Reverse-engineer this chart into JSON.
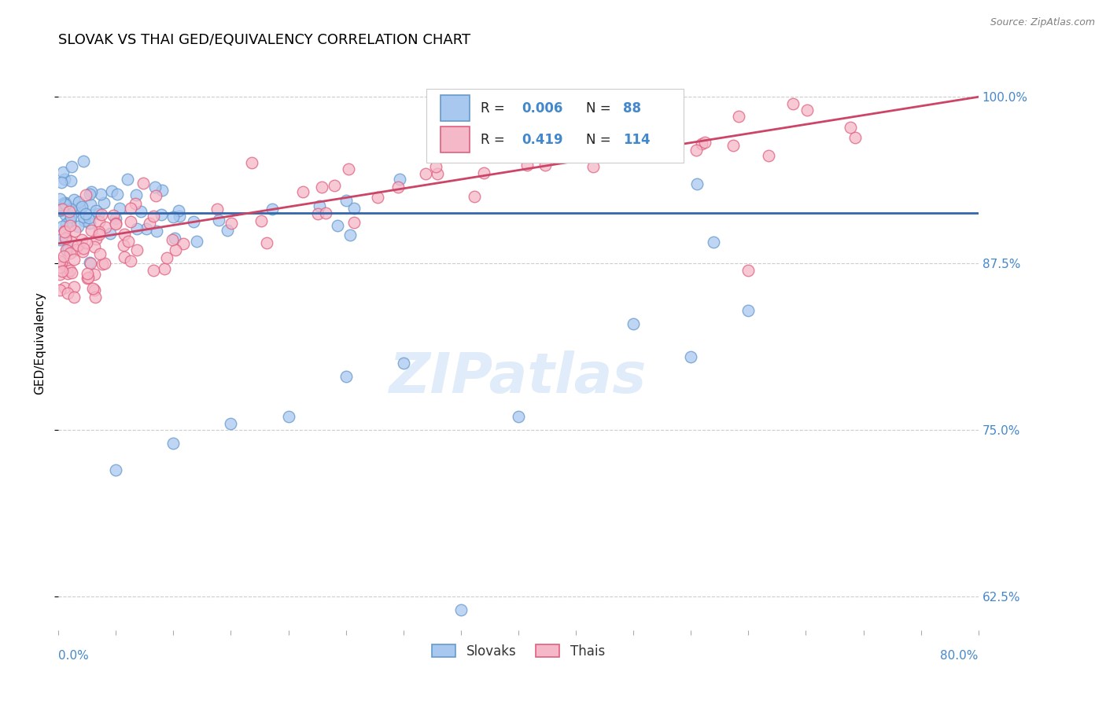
{
  "title": "SLOVAK VS THAI GED/EQUIVALENCY CORRELATION CHART",
  "source_text": "Source: ZipAtlas.com",
  "ylabel": "GED/Equivalency",
  "xmin": 0.0,
  "xmax": 80.0,
  "ymin": 60.0,
  "ymax": 103.0,
  "yticks": [
    62.5,
    75.0,
    87.5,
    100.0
  ],
  "ytick_labels": [
    "62.5%",
    "75.0%",
    "87.5%",
    "100.0%"
  ],
  "blue_color": "#a8c8f0",
  "pink_color": "#f5b8c8",
  "blue_edge_color": "#6699cc",
  "pink_edge_color": "#e06080",
  "blue_line_color": "#3366aa",
  "pink_line_color": "#cc4466",
  "axis_label_color": "#4488cc",
  "N_blue": 88,
  "N_pink": 114,
  "R_blue": 0.006,
  "R_pink": 0.419,
  "slovaks_label": "Slovaks",
  "thais_label": "Thais",
  "watermark_color": "#cce0f5"
}
